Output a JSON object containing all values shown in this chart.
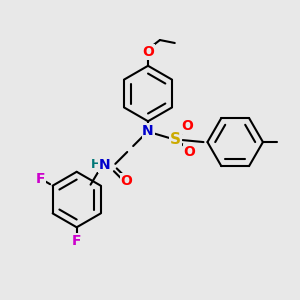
{
  "background_color": "#e8e8e8",
  "bond_color": "#000000",
  "bond_width": 1.5,
  "atom_colors": {
    "N": "#0000cc",
    "O": "#ff0000",
    "F": "#cc00cc",
    "S": "#ccaa00",
    "H_label": "#007777",
    "C": "#000000"
  },
  "font_size_atoms": 9,
  "figsize": [
    3.0,
    3.0
  ],
  "dpi": 100
}
